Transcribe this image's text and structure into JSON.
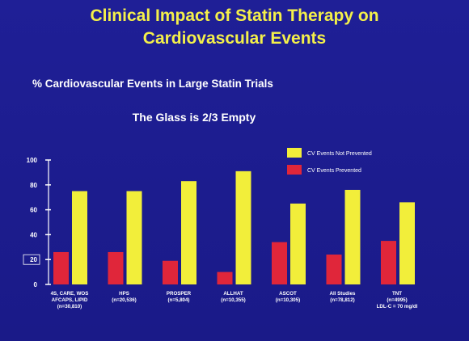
{
  "slide": {
    "title_line1": "Clinical Impact of Statin Therapy on",
    "title_line2": "Cardiovascular Events",
    "subtitle": "% Cardiovascular Events in Large Statin Trials",
    "tagline": "The Glass is 2/3 Empty"
  },
  "colors": {
    "background": "#1c1c8e",
    "title": "#f4f04a",
    "not_prevented": "#f2ee3a",
    "prevented": "#e0263a",
    "highlight_label": "#6fa8ff"
  },
  "chart_data": {
    "type": "bar",
    "ylim": [
      0,
      100
    ],
    "yticks": [
      0,
      20,
      40,
      60,
      80,
      100
    ],
    "categories": [
      {
        "lines": [
          "4S, CARE, WOS",
          "AFCAPS, LIPID",
          "(n=30,810)"
        ],
        "highlight": false
      },
      {
        "lines": [
          "HPS",
          "(n=20,536)"
        ],
        "highlight": false
      },
      {
        "lines": [
          "PROSPER",
          "(n=5,804)"
        ],
        "highlight": false
      },
      {
        "lines": [
          "ALLHAT",
          "(n=10,355)"
        ],
        "highlight": false
      },
      {
        "lines": [
          "ASCOT",
          "(n=10,305)"
        ],
        "highlight": false
      },
      {
        "lines": [
          "All Studies",
          "(n=78,812)"
        ],
        "highlight": false
      },
      {
        "lines": [
          "TNT",
          "(n=4995)",
          "LDL-C = 70 mg/dl"
        ],
        "highlight": true
      }
    ],
    "series": [
      {
        "name": "CV Events Prevented",
        "color": "#e0263a",
        "values": [
          26,
          26,
          19,
          10,
          34,
          24,
          35
        ]
      },
      {
        "name": "CV Events Not Prevented",
        "color": "#f2ee3a",
        "values": [
          75,
          75,
          83,
          91,
          65,
          76,
          66
        ]
      }
    ],
    "legend_placement": "top-right",
    "grid": false
  }
}
